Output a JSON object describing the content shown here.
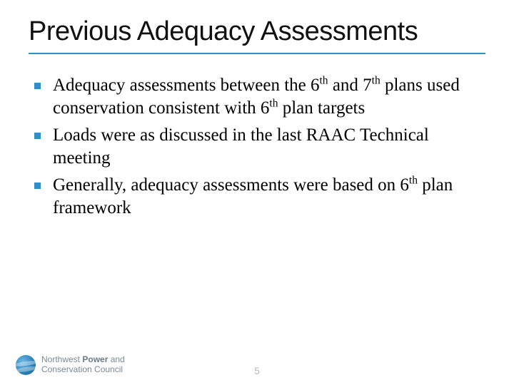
{
  "accent_color": "#318fc8",
  "title": "Previous Adequacy Assessments",
  "bullets": [
    {
      "pre": "Adequacy assessments between the 6",
      "sup1": "th",
      "mid": " and 7",
      "sup2": "th",
      "mid2": " plans used conservation consistent with 6",
      "sup3": "th",
      "post": " plan targets"
    },
    {
      "pre": "Loads were as discussed in the last RAAC Technical meeting",
      "sup1": "",
      "mid": "",
      "sup2": "",
      "mid2": "",
      "sup3": "",
      "post": ""
    },
    {
      "pre": "Generally, adequacy assessments were based on 6",
      "sup1": "th",
      "mid": " plan framework",
      "sup2": "",
      "mid2": "",
      "sup3": "",
      "post": ""
    }
  ],
  "footer": {
    "org_line1_a": "Northwest ",
    "org_line1_b": "Power",
    "org_line1_c": " and",
    "org_line2": "Conservation Council",
    "page_number": "5"
  }
}
